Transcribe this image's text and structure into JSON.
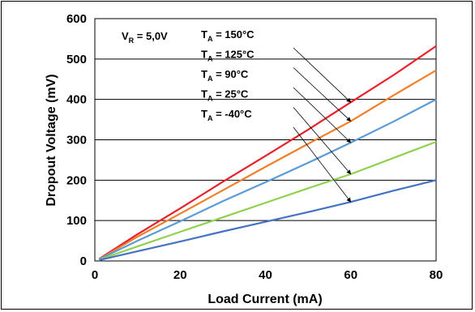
{
  "chart_data": {
    "type": "line",
    "title": "",
    "xlabel": "Load Current (mA)",
    "ylabel": "Dropout Voltage (mV)",
    "xlim": [
      0,
      80
    ],
    "ylim": [
      0,
      600
    ],
    "xticks": [
      "0",
      "20",
      "40",
      "60",
      "80"
    ],
    "yticks": [
      "0",
      "100",
      "200",
      "300",
      "400",
      "500",
      "600"
    ],
    "grid": "horizontal",
    "condition_label": {
      "main": "V",
      "sub": "R",
      "rest": " = 5,0V"
    },
    "series": [
      {
        "name": "T_A = 150°C",
        "label_main": "T",
        "label_sub": "A",
        "label_rest": " = 150°C",
        "color": "#e8202a",
        "x": [
          1,
          10,
          20,
          30,
          40,
          50,
          60,
          70,
          80
        ],
        "y": [
          5,
          66,
          130,
          196,
          260,
          325,
          393,
          460,
          532
        ],
        "arrow_x": 60
      },
      {
        "name": "T_A = 125°C",
        "label_main": "T",
        "label_sub": "A",
        "label_rest": " = 125°C",
        "color": "#f07f2a",
        "x": [
          1,
          10,
          20,
          30,
          40,
          50,
          60,
          70,
          80
        ],
        "y": [
          4,
          60,
          117,
          175,
          233,
          290,
          346,
          410,
          472
        ],
        "arrow_x": 60
      },
      {
        "name": "T_A = 90°C",
        "label_main": "T",
        "label_sub": "A",
        "label_rest": " = 90°C",
        "color": "#5b9bd5",
        "x": [
          1,
          10,
          20,
          30,
          40,
          50,
          60,
          70,
          80
        ],
        "y": [
          4,
          50,
          98,
          148,
          195,
          243,
          293,
          345,
          400
        ],
        "arrow_x": 60
      },
      {
        "name": "T_A = 25°C",
        "label_main": "T",
        "label_sub": "A",
        "label_rest": " = 25°C",
        "color": "#8fd14f",
        "x": [
          1,
          10,
          20,
          30,
          40,
          50,
          60,
          70,
          80
        ],
        "y": [
          3,
          36,
          72,
          108,
          144,
          180,
          215,
          255,
          295
        ],
        "arrow_x": 60
      },
      {
        "name": "T_A = -40°C",
        "label_main": "T",
        "label_sub": "A",
        "label_rest": " = -40°C",
        "color": "#4472c4",
        "x": [
          1,
          10,
          20,
          30,
          40,
          50,
          60,
          70,
          80
        ],
        "y": [
          2,
          24,
          48,
          73,
          97,
          121,
          146,
          174,
          200
        ],
        "arrow_x": 60
      }
    ]
  }
}
